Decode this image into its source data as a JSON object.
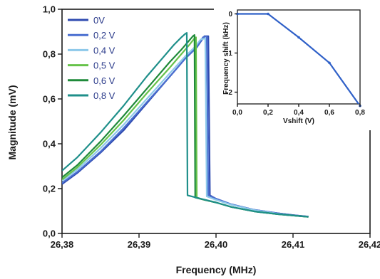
{
  "chart_data": [
    {
      "type": "line",
      "title": "",
      "xlabel": "Frequency (MHz)",
      "ylabel": "Magnitude (mV)",
      "xlim": [
        26.38,
        26.42
      ],
      "ylim": [
        0.0,
        1.0
      ],
      "x_ticks": [
        "26,38",
        "26,39",
        "26,40",
        "26,41",
        "26,42"
      ],
      "y_ticks": [
        "0,0",
        "0,2",
        "0,4",
        "0,6",
        "0,8",
        "1,0"
      ],
      "legend_position": "top-left",
      "series": [
        {
          "name": "0V",
          "color": "#2f4bb0",
          "x": [
            26.38,
            26.382,
            26.385,
            26.388,
            26.391,
            26.394,
            26.396,
            26.3975,
            26.3985,
            26.399,
            26.3992,
            26.4,
            26.402,
            26.405,
            26.408,
            26.41,
            26.412
          ],
          "y": [
            0.22,
            0.27,
            0.36,
            0.46,
            0.58,
            0.7,
            0.78,
            0.83,
            0.88,
            0.88,
            0.17,
            0.155,
            0.13,
            0.105,
            0.09,
            0.082,
            0.075
          ]
        },
        {
          "name": "0,2 V",
          "color": "#4a6fd0",
          "x": [
            26.38,
            26.382,
            26.385,
            26.388,
            26.391,
            26.394,
            26.396,
            26.3975,
            26.3983,
            26.3988,
            26.399,
            26.4,
            26.402,
            26.405,
            26.408,
            26.41,
            26.412
          ],
          "y": [
            0.225,
            0.275,
            0.365,
            0.47,
            0.585,
            0.7,
            0.78,
            0.83,
            0.875,
            0.88,
            0.17,
            0.155,
            0.13,
            0.105,
            0.09,
            0.082,
            0.075
          ]
        },
        {
          "name": "0,4 V",
          "color": "#8ec9ea",
          "x": [
            26.38,
            26.382,
            26.385,
            26.388,
            26.391,
            26.394,
            26.396,
            26.3972,
            26.398,
            26.3986,
            26.3988,
            26.4,
            26.402,
            26.405,
            26.408,
            26.41,
            26.412
          ],
          "y": [
            0.235,
            0.285,
            0.38,
            0.485,
            0.6,
            0.715,
            0.79,
            0.83,
            0.865,
            0.87,
            0.165,
            0.15,
            0.128,
            0.104,
            0.088,
            0.08,
            0.074
          ]
        },
        {
          "name": "0,5 V",
          "color": "#66c24a",
          "x": [
            26.38,
            26.382,
            26.385,
            26.388,
            26.391,
            26.394,
            26.3955,
            26.3965,
            26.3972,
            26.3974,
            26.3975,
            26.3985,
            26.4,
            26.402,
            26.405,
            26.408,
            26.412
          ],
          "y": [
            0.24,
            0.295,
            0.395,
            0.505,
            0.625,
            0.74,
            0.8,
            0.84,
            0.87,
            0.875,
            0.16,
            0.15,
            0.138,
            0.118,
            0.098,
            0.086,
            0.074
          ]
        },
        {
          "name": "0,6 V",
          "color": "#1f8a3a",
          "x": [
            26.38,
            26.382,
            26.385,
            26.388,
            26.391,
            26.394,
            26.3955,
            26.3965,
            26.397,
            26.3972,
            26.3973,
            26.3985,
            26.4,
            26.402,
            26.405,
            26.408,
            26.412
          ],
          "y": [
            0.25,
            0.305,
            0.41,
            0.525,
            0.645,
            0.765,
            0.82,
            0.86,
            0.88,
            0.885,
            0.16,
            0.15,
            0.138,
            0.118,
            0.098,
            0.086,
            0.074
          ]
        },
        {
          "name": "0,8 V",
          "color": "#1f8f8a",
          "x": [
            26.38,
            26.382,
            26.385,
            26.388,
            26.391,
            26.393,
            26.3945,
            26.3955,
            26.396,
            26.3962,
            26.3963,
            26.398,
            26.4,
            26.402,
            26.405,
            26.408,
            26.412
          ],
          "y": [
            0.28,
            0.34,
            0.45,
            0.57,
            0.7,
            0.78,
            0.84,
            0.875,
            0.89,
            0.895,
            0.17,
            0.155,
            0.138,
            0.118,
            0.098,
            0.086,
            0.074
          ]
        }
      ]
    },
    {
      "type": "line",
      "title": "",
      "xlabel": "Vshift (V)",
      "ylabel": "Frequency shift (kHz)",
      "xlim": [
        0.0,
        0.8
      ],
      "ylim": [
        -2.3,
        0.1
      ],
      "x_ticks": [
        "0,0",
        "0,2",
        "0,4",
        "0,6",
        "0,8"
      ],
      "y_ticks": [
        "0",
        "-1",
        "-2"
      ],
      "series": [
        {
          "name": "",
          "color": "#2f60c8",
          "x": [
            0.0,
            0.2,
            0.4,
            0.6,
            0.8
          ],
          "y": [
            0.0,
            0.0,
            -0.6,
            -1.25,
            -2.35
          ]
        }
      ]
    }
  ]
}
